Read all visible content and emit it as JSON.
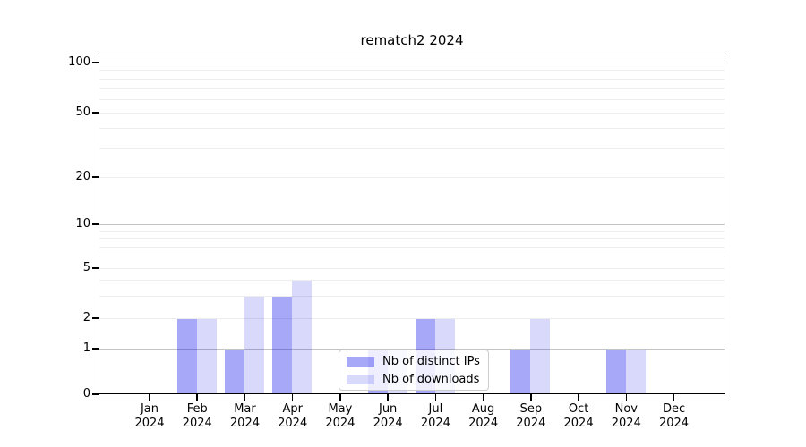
{
  "title": "rematch2 2024",
  "legend": {
    "items": [
      {
        "label": "Nb of distinct IPs",
        "color": "rgba(0,0,235,0.34)"
      },
      {
        "label": "Nb of downloads",
        "color": "rgba(0,0,235,0.15)"
      }
    ]
  },
  "chart_data": {
    "type": "bar",
    "title": "rematch2 2024",
    "categories": [
      "Jan 2024",
      "Feb 2024",
      "Mar 2024",
      "Apr 2024",
      "May 2024",
      "Jun 2024",
      "Jul 2024",
      "Aug 2024",
      "Sep 2024",
      "Oct 2024",
      "Nov 2024",
      "Dec 2024"
    ],
    "series": [
      {
        "name": "Nb of distinct IPs",
        "color": "rgba(0,0,235,0.34)",
        "values": [
          0,
          2,
          1,
          3,
          0,
          1,
          2,
          0,
          1,
          0,
          1,
          0
        ]
      },
      {
        "name": "Nb of downloads",
        "color": "rgba(0,0,235,0.15)",
        "values": [
          0,
          2,
          3,
          4,
          0,
          1,
          2,
          0,
          2,
          0,
          1,
          0
        ]
      }
    ],
    "xlabel": "",
    "ylabel": "",
    "yscale": "symlog",
    "ylim": [
      0,
      100
    ],
    "yticks_labeled": [
      0,
      1,
      2,
      5,
      10,
      20,
      50,
      100
    ],
    "ygrid_major": [
      1,
      10,
      100
    ],
    "ygrid_minor": [
      2,
      3,
      4,
      5,
      6,
      7,
      8,
      9,
      20,
      30,
      40,
      50,
      60,
      70,
      80,
      90
    ],
    "grid": "horizontal, major and minor",
    "legend_position": "lower center"
  }
}
